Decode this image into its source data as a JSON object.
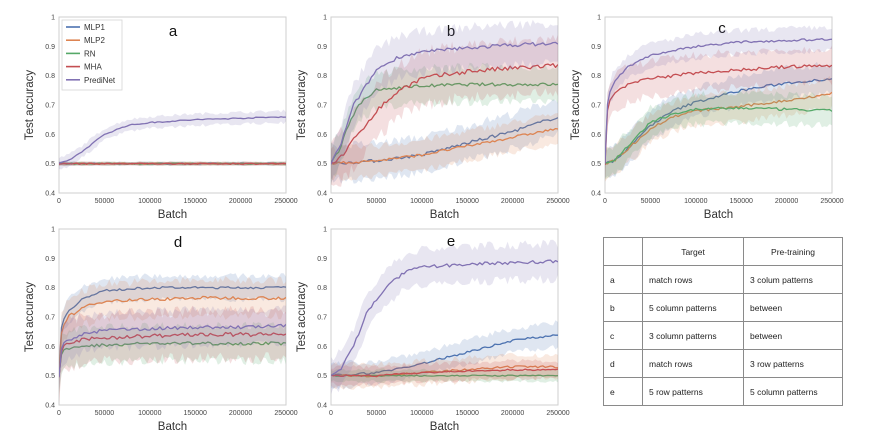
{
  "chart_data": [
    {
      "type": "line",
      "panel": "a",
      "xlabel": "Batch",
      "ylabel": "Test accuracy",
      "xlim": [
        0,
        250000
      ],
      "ylim": [
        0.4,
        1.0
      ],
      "xticks": [
        0,
        50000,
        100000,
        150000,
        200000,
        250000
      ],
      "yticks": [
        0.4,
        0.5,
        0.6,
        0.7,
        0.8,
        0.9,
        1.0
      ],
      "legend": "top-left",
      "series": [
        {
          "name": "MLP1",
          "color": "#4c72b0",
          "band": 0.006,
          "x": [
            0,
            50000,
            100000,
            150000,
            200000,
            250000
          ],
          "y": [
            0.5,
            0.5,
            0.5,
            0.5,
            0.5,
            0.5
          ]
        },
        {
          "name": "MLP2",
          "color": "#dd8452",
          "band": 0.006,
          "x": [
            0,
            50000,
            100000,
            150000,
            200000,
            250000
          ],
          "y": [
            0.5,
            0.5,
            0.5,
            0.5,
            0.5,
            0.5
          ]
        },
        {
          "name": "RN",
          "color": "#55a868",
          "band": 0.006,
          "x": [
            0,
            50000,
            100000,
            150000,
            200000,
            250000
          ],
          "y": [
            0.5,
            0.5,
            0.5,
            0.5,
            0.5,
            0.5
          ]
        },
        {
          "name": "MHA",
          "color": "#c44e52",
          "band": 0.006,
          "x": [
            0,
            50000,
            100000,
            150000,
            200000,
            250000
          ],
          "y": [
            0.5,
            0.5,
            0.5,
            0.5,
            0.5,
            0.5
          ]
        },
        {
          "name": "PrediNet",
          "color": "#8172b3",
          "band": 0.02,
          "x": [
            0,
            10000,
            25000,
            50000,
            75000,
            100000,
            150000,
            200000,
            250000
          ],
          "y": [
            0.5,
            0.51,
            0.54,
            0.6,
            0.63,
            0.64,
            0.65,
            0.655,
            0.66
          ]
        }
      ]
    },
    {
      "type": "line",
      "panel": "b",
      "xlabel": "Batch",
      "ylabel": "Test accuracy",
      "xlim": [
        0,
        250000
      ],
      "ylim": [
        0.4,
        1.0
      ],
      "xticks": [
        0,
        50000,
        100000,
        150000,
        200000,
        250000
      ],
      "yticks": [
        0.4,
        0.5,
        0.6,
        0.7,
        0.8,
        0.9,
        1.0
      ],
      "series": [
        {
          "name": "MLP1",
          "color": "#4c72b0",
          "band": 0.06,
          "x": [
            0,
            50000,
            100000,
            150000,
            200000,
            250000
          ],
          "y": [
            0.5,
            0.51,
            0.53,
            0.57,
            0.61,
            0.66
          ]
        },
        {
          "name": "MLP2",
          "color": "#dd8452",
          "band": 0.05,
          "x": [
            0,
            50000,
            100000,
            150000,
            200000,
            250000
          ],
          "y": [
            0.5,
            0.51,
            0.53,
            0.56,
            0.59,
            0.62
          ]
        },
        {
          "name": "RN",
          "color": "#55a868",
          "band": 0.06,
          "x": [
            0,
            10000,
            20000,
            30000,
            50000,
            75000,
            100000,
            150000,
            200000,
            250000
          ],
          "y": [
            0.5,
            0.55,
            0.64,
            0.7,
            0.75,
            0.76,
            0.765,
            0.77,
            0.77,
            0.77
          ]
        },
        {
          "name": "MHA",
          "color": "#c44e52",
          "band": 0.09,
          "x": [
            0,
            10000,
            25000,
            50000,
            75000,
            100000,
            150000,
            200000,
            250000
          ],
          "y": [
            0.5,
            0.52,
            0.58,
            0.68,
            0.75,
            0.79,
            0.815,
            0.825,
            0.835
          ]
        },
        {
          "name": "PrediNet",
          "color": "#8172b3",
          "band": 0.07,
          "x": [
            0,
            10000,
            25000,
            50000,
            75000,
            100000,
            150000,
            200000,
            250000
          ],
          "y": [
            0.5,
            0.56,
            0.7,
            0.82,
            0.865,
            0.88,
            0.895,
            0.905,
            0.91
          ]
        }
      ]
    },
    {
      "type": "line",
      "panel": "c",
      "xlabel": "Batch",
      "ylabel": "Test accuracy",
      "xlim": [
        0,
        250000
      ],
      "ylim": [
        0.4,
        1.0
      ],
      "xticks": [
        0,
        50000,
        100000,
        150000,
        200000,
        250000
      ],
      "yticks": [
        0.4,
        0.5,
        0.6,
        0.7,
        0.8,
        0.9,
        1.0
      ],
      "series": [
        {
          "name": "MLP1",
          "color": "#4c72b0",
          "band": 0.05,
          "x": [
            0,
            10000,
            25000,
            50000,
            75000,
            100000,
            150000,
            200000,
            250000
          ],
          "y": [
            0.5,
            0.51,
            0.55,
            0.63,
            0.68,
            0.71,
            0.75,
            0.775,
            0.79
          ]
        },
        {
          "name": "MLP2",
          "color": "#dd8452",
          "band": 0.05,
          "x": [
            0,
            10000,
            25000,
            50000,
            75000,
            100000,
            150000,
            200000,
            250000
          ],
          "y": [
            0.5,
            0.51,
            0.55,
            0.62,
            0.66,
            0.68,
            0.695,
            0.715,
            0.74
          ]
        },
        {
          "name": "RN",
          "color": "#55a868",
          "band": 0.05,
          "x": [
            0,
            10000,
            25000,
            50000,
            75000,
            100000,
            150000,
            200000,
            250000
          ],
          "y": [
            0.5,
            0.51,
            0.56,
            0.64,
            0.67,
            0.685,
            0.69,
            0.685,
            0.68
          ]
        },
        {
          "name": "MHA",
          "color": "#c44e52",
          "band": 0.06,
          "x": [
            0,
            3000,
            10000,
            25000,
            50000,
            100000,
            150000,
            200000,
            250000
          ],
          "y": [
            0.5,
            0.7,
            0.74,
            0.77,
            0.79,
            0.81,
            0.82,
            0.83,
            0.835
          ]
        },
        {
          "name": "PrediNet",
          "color": "#8172b3",
          "band": 0.04,
          "x": [
            0,
            3000,
            10000,
            25000,
            50000,
            100000,
            150000,
            200000,
            250000
          ],
          "y": [
            0.5,
            0.72,
            0.78,
            0.83,
            0.87,
            0.9,
            0.915,
            0.92,
            0.925
          ]
        }
      ]
    },
    {
      "type": "line",
      "panel": "d",
      "xlabel": "Batch",
      "ylabel": "Test accuracy",
      "xlim": [
        0,
        250000
      ],
      "ylim": [
        0.4,
        1.0
      ],
      "xticks": [
        0,
        50000,
        100000,
        150000,
        200000,
        250000
      ],
      "yticks": [
        0.4,
        0.5,
        0.6,
        0.7,
        0.8,
        0.9,
        1.0
      ],
      "series": [
        {
          "name": "MLP1",
          "color": "#4c72b0",
          "band": 0.04,
          "x": [
            0,
            3000,
            10000,
            25000,
            50000,
            100000,
            150000,
            200000,
            250000
          ],
          "y": [
            0.5,
            0.68,
            0.72,
            0.76,
            0.79,
            0.8,
            0.8,
            0.8,
            0.8
          ]
        },
        {
          "name": "MLP2",
          "color": "#dd8452",
          "band": 0.06,
          "x": [
            0,
            3000,
            10000,
            25000,
            50000,
            100000,
            150000,
            200000,
            250000
          ],
          "y": [
            0.5,
            0.66,
            0.7,
            0.73,
            0.755,
            0.76,
            0.765,
            0.765,
            0.765
          ]
        },
        {
          "name": "RN",
          "color": "#55a868",
          "band": 0.06,
          "x": [
            0,
            3000,
            10000,
            25000,
            50000,
            100000,
            150000,
            200000,
            250000
          ],
          "y": [
            0.5,
            0.58,
            0.59,
            0.6,
            0.605,
            0.61,
            0.61,
            0.61,
            0.61
          ]
        },
        {
          "name": "MHA",
          "color": "#c44e52",
          "band": 0.08,
          "x": [
            0,
            3000,
            10000,
            25000,
            50000,
            100000,
            150000,
            200000,
            250000
          ],
          "y": [
            0.5,
            0.59,
            0.61,
            0.62,
            0.63,
            0.635,
            0.64,
            0.64,
            0.64
          ]
        },
        {
          "name": "PrediNet",
          "color": "#8172b3",
          "band": 0.06,
          "x": [
            0,
            3000,
            10000,
            25000,
            50000,
            100000,
            150000,
            200000,
            250000
          ],
          "y": [
            0.5,
            0.6,
            0.62,
            0.64,
            0.655,
            0.66,
            0.665,
            0.665,
            0.67
          ]
        }
      ]
    },
    {
      "type": "line",
      "panel": "e",
      "xlabel": "Batch",
      "ylabel": "Test accuracy",
      "xlim": [
        0,
        250000
      ],
      "ylim": [
        0.4,
        1.0
      ],
      "xticks": [
        0,
        50000,
        100000,
        150000,
        200000,
        250000
      ],
      "yticks": [
        0.4,
        0.5,
        0.6,
        0.7,
        0.8,
        0.9,
        1.0
      ],
      "series": [
        {
          "name": "MLP1",
          "color": "#4c72b0",
          "band": 0.04,
          "x": [
            0,
            50000,
            100000,
            150000,
            200000,
            250000
          ],
          "y": [
            0.5,
            0.51,
            0.54,
            0.58,
            0.62,
            0.64
          ]
        },
        {
          "name": "MLP2",
          "color": "#dd8452",
          "band": 0.04,
          "x": [
            0,
            50000,
            100000,
            150000,
            200000,
            250000
          ],
          "y": [
            0.5,
            0.5,
            0.51,
            0.52,
            0.53,
            0.53
          ]
        },
        {
          "name": "RN",
          "color": "#55a868",
          "band": 0.02,
          "x": [
            0,
            50000,
            100000,
            150000,
            200000,
            250000
          ],
          "y": [
            0.5,
            0.5,
            0.5,
            0.5,
            0.5,
            0.5
          ]
        },
        {
          "name": "MHA",
          "color": "#c44e52",
          "band": 0.03,
          "x": [
            0,
            50000,
            100000,
            150000,
            200000,
            250000
          ],
          "y": [
            0.5,
            0.5,
            0.51,
            0.515,
            0.52,
            0.52
          ]
        },
        {
          "name": "PrediNet",
          "color": "#8172b3",
          "band": 0.06,
          "x": [
            0,
            10000,
            25000,
            40000,
            60000,
            80000,
            100000,
            150000,
            200000,
            250000
          ],
          "y": [
            0.5,
            0.52,
            0.6,
            0.72,
            0.8,
            0.85,
            0.87,
            0.88,
            0.885,
            0.89
          ]
        }
      ]
    }
  ],
  "table": {
    "headers": [
      "",
      "Target",
      "Pre-training"
    ],
    "rows": [
      {
        "key": "a",
        "target": "match rows",
        "pretraining": "3 colum patterns"
      },
      {
        "key": "b",
        "target": "5 column patterns",
        "pretraining": "between"
      },
      {
        "key": "c",
        "target": "3 column patterns",
        "pretraining": "between"
      },
      {
        "key": "d",
        "target": "match rows",
        "pretraining": "3 row patterns"
      },
      {
        "key": "e",
        "target": "5 row patterns",
        "pretraining": "5 column patterns"
      }
    ]
  }
}
